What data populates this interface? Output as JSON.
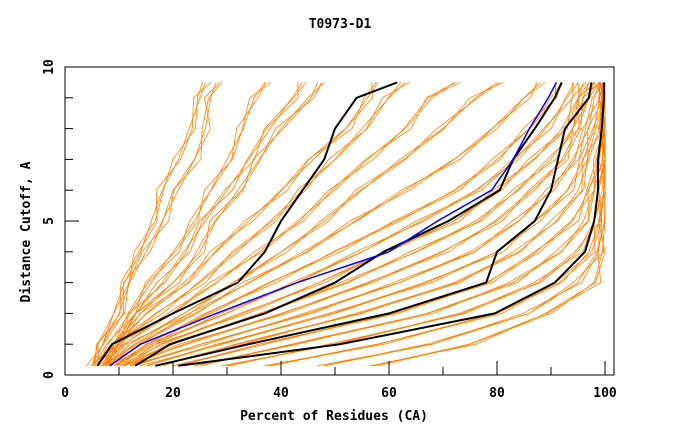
{
  "chart_data": {
    "type": "line",
    "title": "T0973-D1",
    "xlabel": "Percent of Residues (CA)",
    "ylabel": "Distance Cutoff, A",
    "xlim": [
      0,
      100
    ],
    "ylim": [
      0,
      10
    ],
    "x_ticks": [
      "0",
      "20",
      "40",
      "60",
      "80",
      "100"
    ],
    "y_ticks": [
      "0",
      "5",
      "10"
    ],
    "grid": false,
    "y_levels": [
      0.3,
      1,
      2,
      3,
      4,
      5,
      6,
      7,
      8,
      9,
      9.5
    ],
    "colors": {
      "models": "#ff8000",
      "highlight": "#0000ff",
      "reference": "#000000"
    },
    "model_series": [
      [
        5,
        7,
        9,
        11,
        14,
        16,
        18,
        21,
        23,
        25,
        26
      ],
      [
        5,
        7,
        10,
        12,
        15,
        18,
        21,
        24,
        26,
        27,
        28
      ],
      [
        6,
        8,
        12,
        16,
        20,
        24,
        27,
        30,
        33,
        35,
        37
      ],
      [
        6,
        9,
        13,
        18,
        22,
        26,
        30,
        34,
        38,
        42,
        44
      ],
      [
        6,
        9,
        14,
        20,
        25,
        28,
        32,
        36,
        40,
        45,
        48
      ],
      [
        7,
        10,
        15,
        22,
        28,
        34,
        40,
        46,
        52,
        56,
        58
      ],
      [
        7,
        10,
        17,
        25,
        32,
        38,
        44,
        50,
        55,
        60,
        63
      ],
      [
        7,
        11,
        19,
        28,
        36,
        43,
        50,
        56,
        63,
        68,
        72
      ],
      [
        8,
        12,
        22,
        32,
        40,
        48,
        55,
        62,
        70,
        76,
        80
      ],
      [
        8,
        13,
        24,
        34,
        44,
        54,
        63,
        72,
        80,
        85,
        88
      ],
      [
        9,
        15,
        27,
        38,
        50,
        62,
        72,
        80,
        86,
        90,
        92
      ],
      [
        9,
        16,
        30,
        42,
        55,
        66,
        76,
        84,
        89,
        93,
        95
      ],
      [
        10,
        18,
        33,
        47,
        60,
        72,
        80,
        87,
        92,
        95,
        96
      ],
      [
        11,
        20,
        36,
        52,
        65,
        76,
        84,
        90,
        94,
        96,
        97
      ],
      [
        12,
        22,
        40,
        57,
        70,
        80,
        87,
        92,
        95,
        97,
        98
      ],
      [
        13,
        25,
        45,
        62,
        75,
        84,
        90,
        94,
        97,
        98,
        99
      ],
      [
        15,
        28,
        50,
        67,
        80,
        88,
        93,
        96,
        98,
        99,
        99
      ],
      [
        17,
        32,
        55,
        72,
        84,
        91,
        95,
        97,
        99,
        99.5,
        100
      ],
      [
        20,
        37,
        61,
        78,
        88,
        94,
        97,
        99,
        99.5,
        100,
        100
      ],
      [
        24,
        43,
        67,
        83,
        92,
        96,
        98,
        99.5,
        100,
        100,
        100
      ],
      [
        30,
        50,
        73,
        88,
        95,
        98,
        99.5,
        100,
        100,
        100,
        100
      ],
      [
        38,
        58,
        80,
        92,
        97,
        99,
        100,
        100,
        100,
        100,
        100
      ],
      [
        48,
        67,
        86,
        95,
        98.5,
        100,
        100,
        100,
        100,
        100,
        100
      ],
      [
        57,
        75,
        90,
        98,
        99.5,
        100,
        100,
        100,
        100,
        100,
        100
      ]
    ],
    "highlight_series": [
      8.3,
      14,
      28,
      43,
      60,
      69,
      79,
      83,
      86,
      89.5,
      91
    ],
    "reference_series": [
      [
        6,
        8.7,
        20,
        32,
        37,
        40,
        44,
        48,
        50,
        54,
        61.5
      ],
      [
        13,
        19.5,
        37,
        50,
        59,
        71,
        80.5,
        83,
        87,
        90.7,
        92
      ],
      [
        16.7,
        34,
        60,
        78,
        80,
        87,
        90,
        91.3,
        92.6,
        97,
        97.5
      ],
      [
        21,
        51,
        79.6,
        90.7,
        96.3,
        98,
        98.7,
        98.7,
        99.4,
        99.8,
        99.8
      ]
    ]
  }
}
